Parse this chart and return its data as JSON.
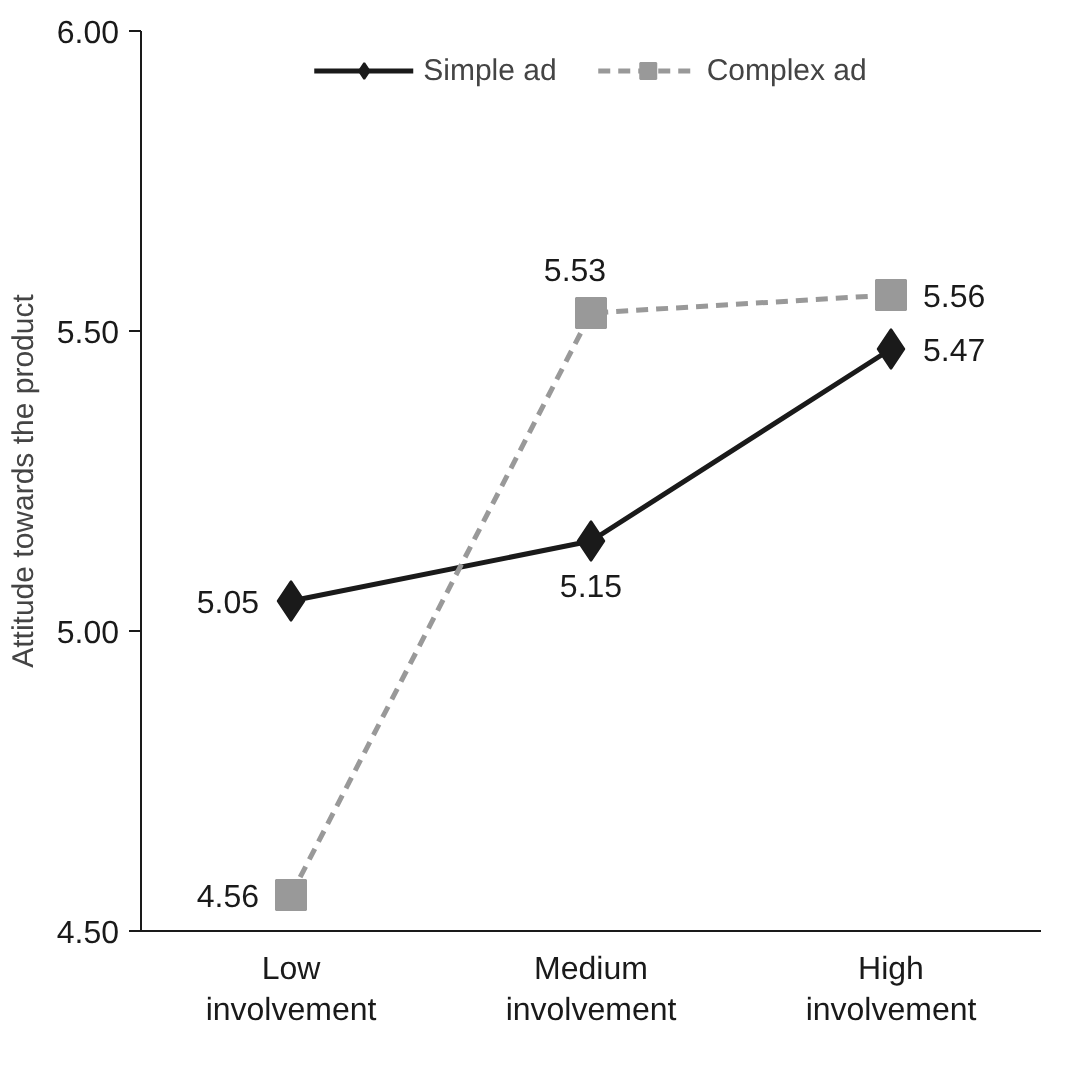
{
  "chart_data": {
    "type": "line",
    "ylabel": "Attitude towards the product",
    "categories": [
      "Low\ninvolvement",
      "Medium\ninvolvement",
      "High\ninvolvement"
    ],
    "series": [
      {
        "name": "Simple ad",
        "color": "#1a1a1a",
        "values": [
          5.05,
          5.15,
          5.47
        ],
        "marker": "diamond",
        "line_style": "solid"
      },
      {
        "name": "Complex ad",
        "color": "#999999",
        "values": [
          4.56,
          5.53,
          5.56
        ],
        "marker": "square",
        "line_style": "dashed"
      }
    ],
    "ylim": [
      4.5,
      6.0
    ],
    "yticks": [
      {
        "value": 4.5,
        "label": "4.50"
      },
      {
        "value": 5.0,
        "label": "5.00"
      },
      {
        "value": 5.5,
        "label": "5.50"
      },
      {
        "value": 6.0,
        "label": "6.00"
      }
    ],
    "data_labels": true,
    "grid": false,
    "legend": "top"
  }
}
